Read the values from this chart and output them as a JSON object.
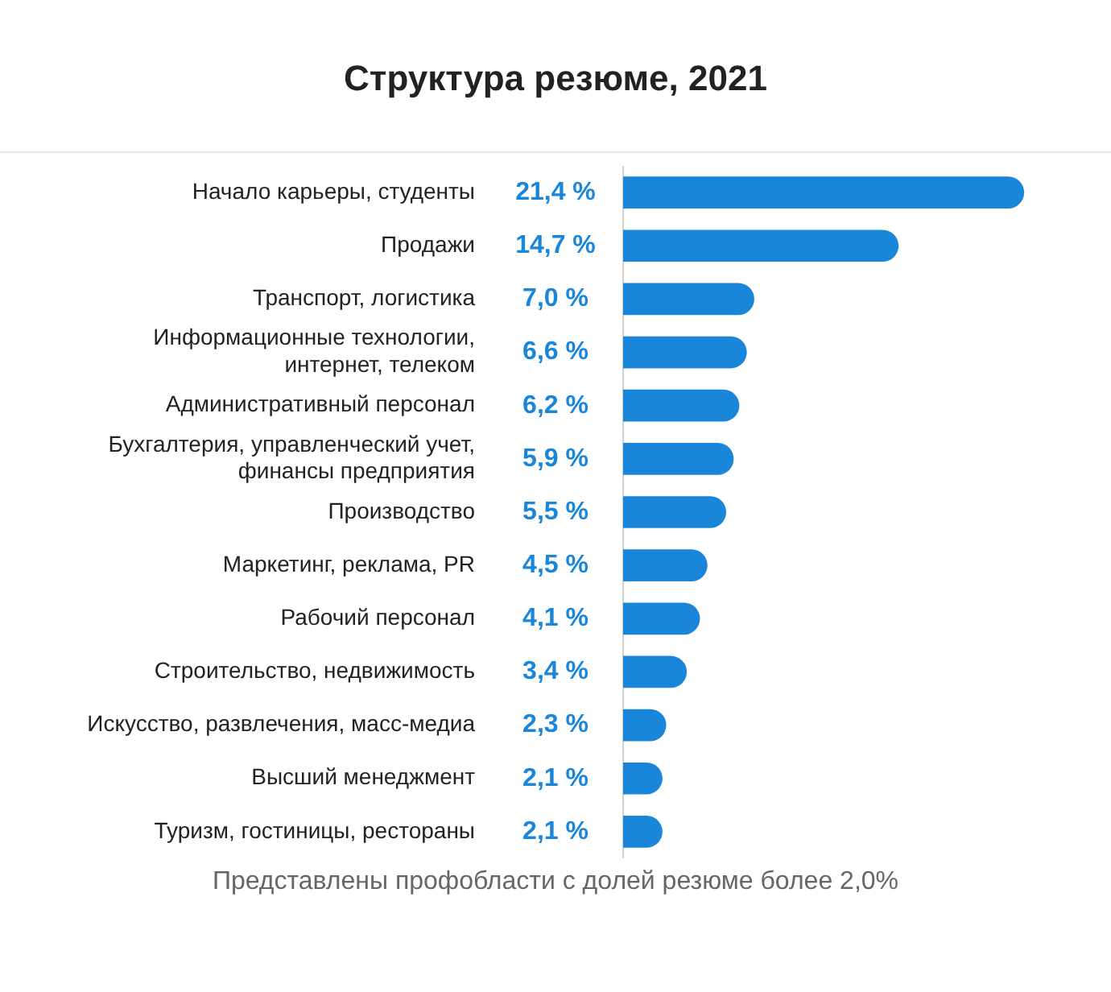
{
  "chart_data": {
    "type": "bar",
    "orientation": "horizontal",
    "title": "Структура резюме, 2021",
    "categories": [
      "Начало карьеры, студенты",
      "Продажи",
      "Транспорт, логистика",
      "Информационные технологии, интернет, телеком",
      "Административный персонал",
      "Бухгалтерия, управленческий учет, финансы предприятия",
      "Производство",
      "Маркетинг, реклама, PR",
      "Рабочий персонал",
      "Строительство, недвижимость",
      "Искусство, развлечения, масс-медиа",
      "Высший менеджмент",
      "Туризм, гостиницы, рестораны"
    ],
    "values": [
      21.4,
      14.7,
      7.0,
      6.6,
      6.2,
      5.9,
      5.5,
      4.5,
      4.1,
      3.4,
      2.3,
      2.1,
      2.1
    ],
    "value_labels": [
      "21,4 %",
      "14,7 %",
      "7,0 %",
      "6,6 %",
      "6,2 %",
      "5,9 %",
      "5,5 %",
      "4,5 %",
      "4,1 %",
      "3,4 %",
      "2,3 %",
      "2,1 %",
      "2,1 %"
    ],
    "color": "#1a86d9",
    "tick_labels": "y",
    "legend": false,
    "annotations": [
      "Представлены профобласти с долей резюме более 2,0%"
    ]
  }
}
